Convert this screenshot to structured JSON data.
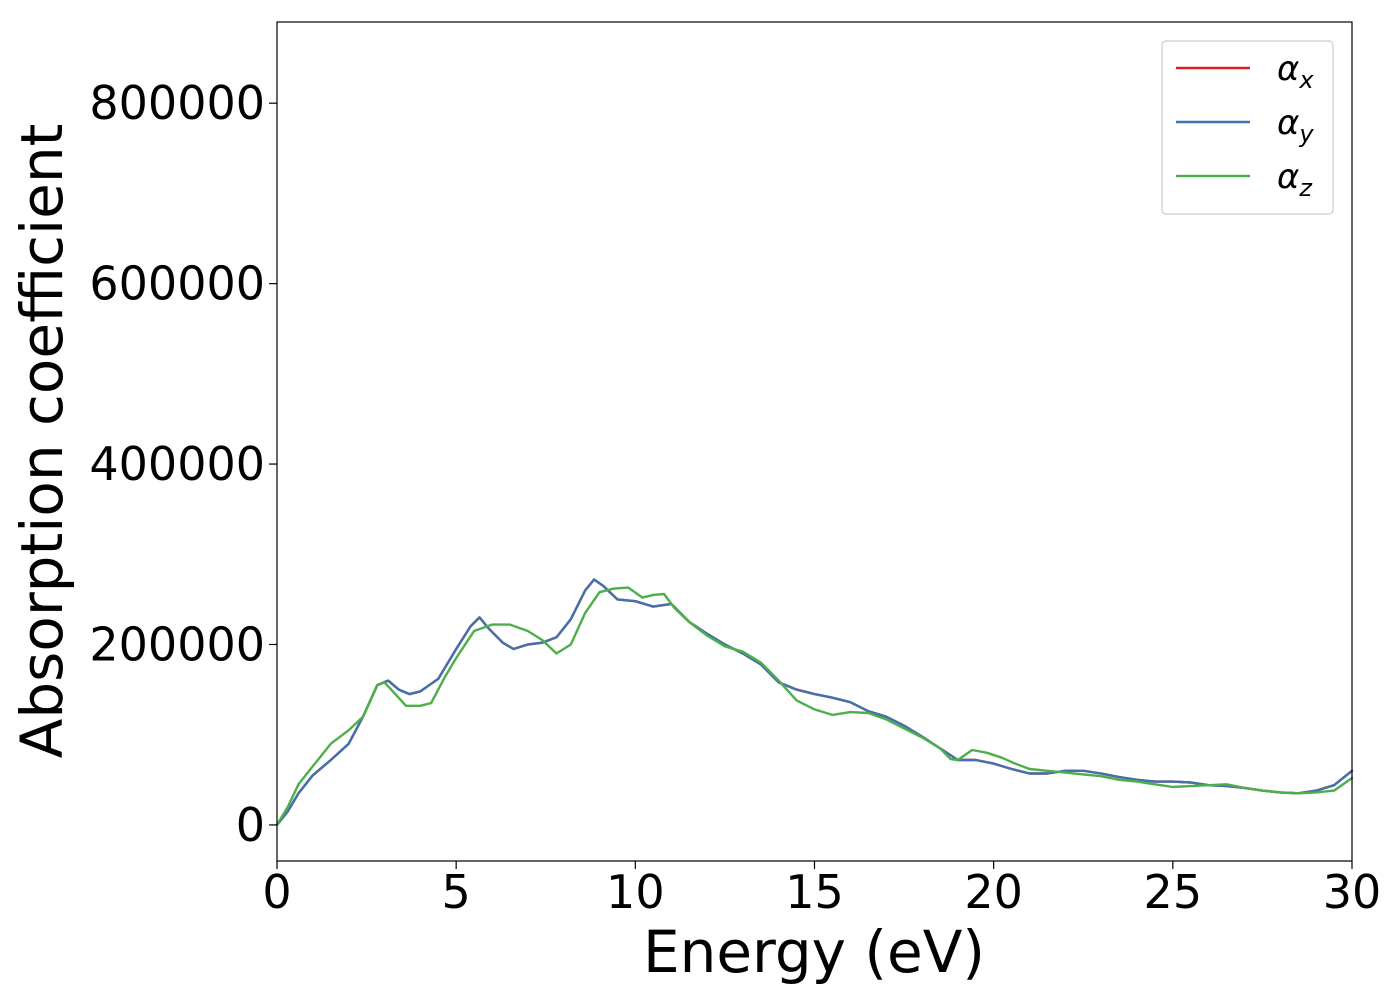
{
  "chart_data": {
    "type": "line",
    "xlabel": "Energy (eV)",
    "ylabel": "Absorption coefficient",
    "xlim": [
      0,
      30
    ],
    "ylim": [
      -40000,
      890000
    ],
    "xticks": [
      0,
      5,
      10,
      15,
      20,
      25,
      30
    ],
    "xtick_labels": [
      "0",
      "5",
      "10",
      "15",
      "20",
      "25",
      "30"
    ],
    "yticks": [
      0,
      200000,
      400000,
      600000,
      800000
    ],
    "ytick_labels": [
      "0",
      "200000",
      "400000",
      "600000",
      "800000"
    ],
    "grid": false,
    "legend_position": "top-right",
    "series": [
      {
        "name": "α_x",
        "legend_symbol": "α",
        "legend_sub": "x",
        "color": "#e41a1c",
        "x": [
          0,
          0.3,
          0.6,
          1.0,
          1.5,
          2.0,
          2.4,
          2.8,
          3.1,
          3.4,
          3.7,
          4.0,
          4.5,
          5.0,
          5.4,
          5.65,
          5.9,
          6.3,
          6.6,
          7.0,
          7.4,
          7.8,
          8.2,
          8.6,
          8.85,
          9.1,
          9.5,
          10.0,
          10.5,
          11.0,
          11.5,
          12.0,
          12.5,
          13.0,
          13.5,
          14.0,
          14.5,
          15.0,
          15.5,
          16.0,
          16.5,
          17.0,
          17.5,
          18.0,
          18.5,
          19.0,
          19.5,
          20.0,
          20.5,
          21.0,
          21.5,
          22.0,
          22.5,
          23.0,
          23.5,
          24.0,
          24.5,
          25.0,
          25.5,
          26.0,
          26.5,
          27.0,
          27.5,
          28.0,
          28.5,
          29.0,
          29.5,
          30.0
        ],
        "y": [
          0,
          15000,
          35000,
          55000,
          72000,
          90000,
          120000,
          155000,
          160000,
          150000,
          145000,
          148000,
          162000,
          195000,
          220000,
          230000,
          218000,
          202000,
          195000,
          200000,
          202000,
          208000,
          228000,
          260000,
          272000,
          265000,
          250000,
          248000,
          242000,
          245000,
          225000,
          212000,
          200000,
          190000,
          178000,
          158000,
          150000,
          145000,
          141000,
          136000,
          126000,
          120000,
          110000,
          98000,
          85000,
          72000,
          72000,
          68000,
          62000,
          57000,
          57000,
          60000,
          60000,
          57000,
          53000,
          50000,
          48000,
          48000,
          47000,
          44000,
          43000,
          41000,
          38000,
          36000,
          35000,
          38000,
          44000,
          60000
        ]
      },
      {
        "name": "α_y",
        "legend_symbol": "α",
        "legend_sub": "y",
        "color": "#3f72ae",
        "x": [
          0,
          0.3,
          0.6,
          1.0,
          1.5,
          2.0,
          2.4,
          2.8,
          3.1,
          3.4,
          3.7,
          4.0,
          4.5,
          5.0,
          5.4,
          5.65,
          5.9,
          6.3,
          6.6,
          7.0,
          7.4,
          7.8,
          8.2,
          8.6,
          8.85,
          9.1,
          9.5,
          10.0,
          10.5,
          11.0,
          11.5,
          12.0,
          12.5,
          13.0,
          13.5,
          14.0,
          14.5,
          15.0,
          15.5,
          16.0,
          16.5,
          17.0,
          17.5,
          18.0,
          18.5,
          19.0,
          19.5,
          20.0,
          20.5,
          21.0,
          21.5,
          22.0,
          22.5,
          23.0,
          23.5,
          24.0,
          24.5,
          25.0,
          25.5,
          26.0,
          26.5,
          27.0,
          27.5,
          28.0,
          28.5,
          29.0,
          29.5,
          30.0
        ],
        "y": [
          0,
          15000,
          35000,
          55000,
          72000,
          90000,
          120000,
          155000,
          160000,
          150000,
          145000,
          148000,
          162000,
          195000,
          220000,
          230000,
          218000,
          202000,
          195000,
          200000,
          202000,
          208000,
          228000,
          260000,
          272000,
          265000,
          250000,
          248000,
          242000,
          245000,
          225000,
          212000,
          200000,
          190000,
          178000,
          158000,
          150000,
          145000,
          141000,
          136000,
          126000,
          120000,
          110000,
          98000,
          85000,
          72000,
          72000,
          68000,
          62000,
          57000,
          57000,
          60000,
          60000,
          57000,
          53000,
          50000,
          48000,
          48000,
          47000,
          44000,
          43000,
          41000,
          38000,
          36000,
          35000,
          38000,
          44000,
          60000
        ]
      },
      {
        "name": "α_z",
        "legend_symbol": "α",
        "legend_sub": "z",
        "color": "#4daf4a",
        "x": [
          0,
          0.3,
          0.6,
          1.0,
          1.5,
          2.0,
          2.4,
          2.8,
          3.0,
          3.3,
          3.6,
          4.0,
          4.3,
          4.7,
          5.0,
          5.5,
          6.0,
          6.5,
          7.0,
          7.4,
          7.8,
          8.2,
          8.6,
          9.0,
          9.4,
          9.8,
          10.2,
          10.5,
          10.8,
          11.1,
          11.5,
          12.0,
          12.5,
          13.0,
          13.5,
          14.0,
          14.5,
          15.0,
          15.5,
          16.0,
          16.5,
          17.0,
          17.5,
          18.0,
          18.5,
          18.8,
          19.0,
          19.4,
          19.8,
          20.2,
          20.6,
          21.0,
          21.5,
          22.0,
          22.5,
          23.0,
          23.5,
          24.0,
          24.5,
          25.0,
          25.5,
          26.0,
          26.5,
          27.0,
          27.5,
          28.0,
          28.5,
          29.0,
          29.5,
          30.0
        ],
        "y": [
          0,
          20000,
          45000,
          65000,
          90000,
          105000,
          120000,
          155000,
          158000,
          145000,
          132000,
          132000,
          135000,
          165000,
          185000,
          215000,
          222000,
          222000,
          215000,
          205000,
          190000,
          200000,
          235000,
          258000,
          262000,
          263000,
          252000,
          255000,
          256000,
          240000,
          225000,
          210000,
          198000,
          192000,
          180000,
          160000,
          138000,
          128000,
          122000,
          125000,
          124000,
          117000,
          107000,
          97000,
          85000,
          73000,
          72000,
          83000,
          80000,
          75000,
          68000,
          62000,
          60000,
          58000,
          56000,
          54000,
          50000,
          48000,
          45000,
          42000,
          43000,
          44000,
          45000,
          41000,
          38000,
          36000,
          35000,
          36000,
          38000,
          52000
        ]
      }
    ]
  }
}
